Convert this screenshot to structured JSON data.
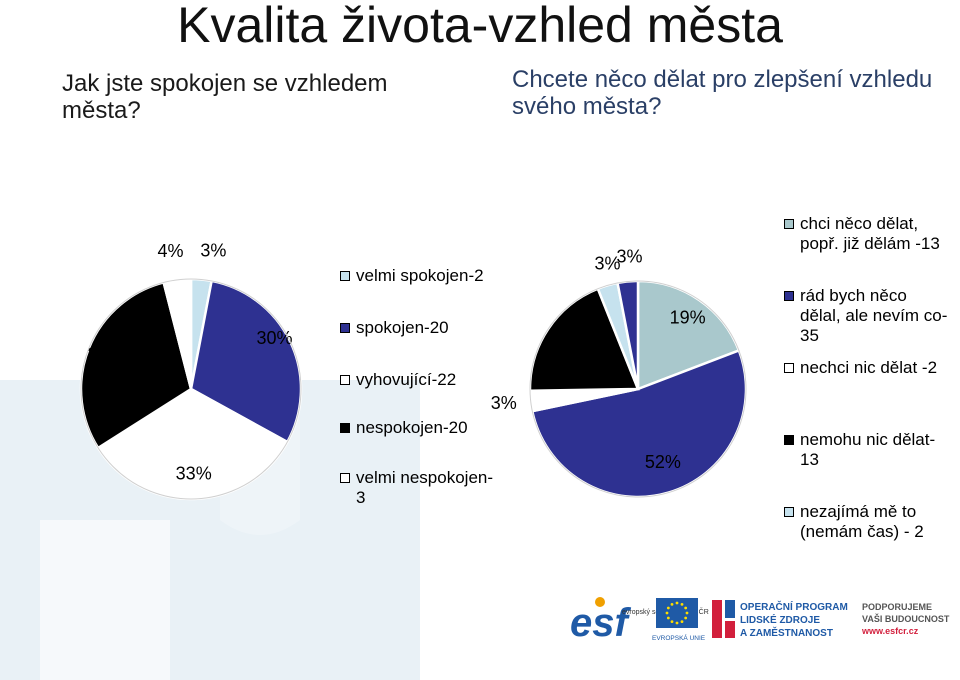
{
  "page": {
    "title": "Kvalita života-vzhled města",
    "question_left": "Jak jste spokojen se vzhledem města?",
    "question_right": "Chcete něco dělat pro zlepšení vzhledu svého města?"
  },
  "colors": {
    "white": "#ffffff",
    "light_blue": "#c6e2ee",
    "navy": "#2e3191",
    "black": "#000000",
    "sage": "#a9c8cc",
    "text_blue": "#2a3f66"
  },
  "chart_data": [
    {
      "type": "pie",
      "title": "Jak jste spokojen se vzhledem města?",
      "legend_position": "right",
      "slices": [
        {
          "name": "velmi spokojen-2",
          "value": 3,
          "label": "3%",
          "color": "#c6e2ee"
        },
        {
          "name": "spokojen-20",
          "value": 30,
          "label": "30%",
          "color": "#2e3191"
        },
        {
          "name": "vyhovující-22",
          "value": 33,
          "label": "33%",
          "color": "#ffffff"
        },
        {
          "name": "nespokojen-20",
          "value": 30,
          "label": "30%",
          "color": "#000000"
        },
        {
          "name": "velmi nespokojen-3",
          "value": 4,
          "label": "4%",
          "color": "#ffffff"
        }
      ]
    },
    {
      "type": "pie",
      "title": "Chcete něco dělat pro zlepšení vzhledu svého města?",
      "legend_position": "right",
      "slices": [
        {
          "name": "chci něco dělat, popř. již dělám -13",
          "value": 19,
          "label": "19%",
          "color": "#a9c8cc"
        },
        {
          "name": "rád bych něco dělal, ale nevím co- 35",
          "value": 52,
          "label": "52%",
          "color": "#2e3191"
        },
        {
          "name": "nechci nic dělat -2",
          "value": 3,
          "label": "3%",
          "color": "#ffffff"
        },
        {
          "name": "nemohu nic dělat-13",
          "value": 19,
          "label": "19%",
          "color": "#000000"
        },
        {
          "name": "nezajímá mě to (nemám čas) - 2",
          "value": 3,
          "label": "3%",
          "color": "#c6e2ee"
        },
        {
          "name": "",
          "value": 3,
          "label": "3%",
          "color": "#2e3191"
        }
      ]
    }
  ],
  "logos": {
    "esf_sub": "evropský sociální fond v ČR",
    "eu_label": "EVROPSKÁ UNIE",
    "op_line1": "OPERAČNÍ PROGRAM",
    "op_line2": "LIDSKÉ ZDROJE",
    "op_line3": "A ZAMĚSTNANOST",
    "support_line1": "PODPORUJEME",
    "support_line2": "VAŠI BUDOUCNOST",
    "support_url": "www.esfcr.cz"
  }
}
